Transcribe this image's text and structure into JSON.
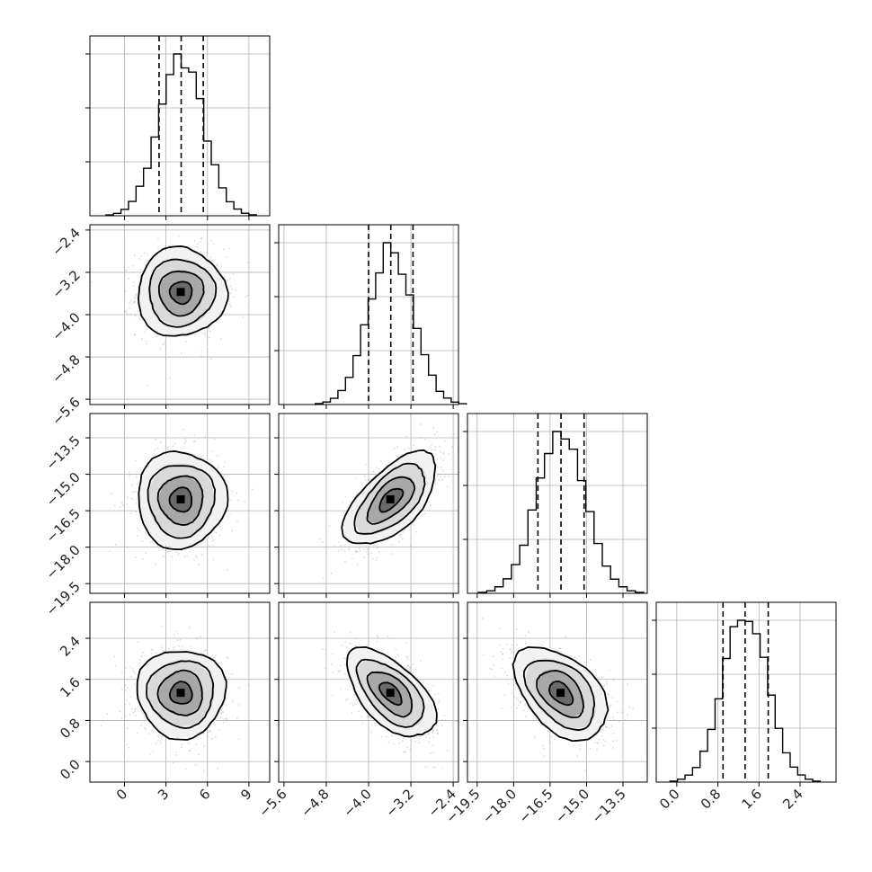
{
  "chart_data": {
    "type": "corner",
    "n_params": 4,
    "params": [
      {
        "mean": 4.1,
        "sd": 1.6,
        "q16": 2.5,
        "q50": 4.1,
        "q84": 5.7,
        "range": [
          -2.5,
          10.5
        ],
        "ticks": [
          0,
          3,
          6,
          9
        ],
        "tick_labels": [
          "0",
          "3",
          "6",
          "9"
        ]
      },
      {
        "mean": -3.58,
        "sd": 0.42,
        "q16": -4.0,
        "q50": -3.58,
        "q84": -3.16,
        "range": [
          -5.7,
          -2.3
        ],
        "ticks": [
          -5.6,
          -4.8,
          -4.0,
          -3.2,
          -2.4
        ],
        "tick_labels": [
          "−5.6",
          "−4.8",
          "−4.0",
          "−3.2",
          "−2.4"
        ]
      },
      {
        "mean": -16.05,
        "sd": 1.0,
        "q16": -17.0,
        "q50": -16.05,
        "q84": -15.1,
        "range": [
          -19.9,
          -12.5
        ],
        "ticks": [
          -19.5,
          -18.0,
          -16.5,
          -15.0,
          -13.5
        ],
        "tick_labels": [
          "−19.5",
          "−18.0",
          "−16.5",
          "−15.0",
          "−13.5"
        ]
      },
      {
        "mean": 1.33,
        "sd": 0.43,
        "q16": 0.9,
        "q50": 1.33,
        "q84": 1.78,
        "range": [
          -0.4,
          3.1
        ],
        "ticks": [
          0.0,
          0.8,
          1.6,
          2.4
        ],
        "tick_labels": [
          "0.0",
          "0.8",
          "1.6",
          "2.4"
        ]
      }
    ],
    "correlations": [
      [
        1.0,
        0.0,
        0.0,
        0.0
      ],
      [
        0.0,
        1.0,
        0.62,
        -0.58
      ],
      [
        0.0,
        0.62,
        1.0,
        -0.45
      ],
      [
        0.0,
        -0.58,
        -0.45,
        1.0
      ]
    ],
    "grid": true,
    "quantile_lines": "dashed"
  }
}
